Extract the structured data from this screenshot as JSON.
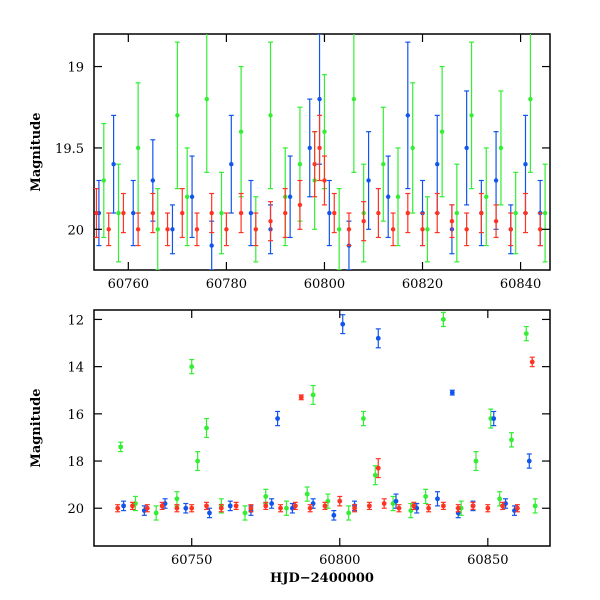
{
  "chart_data": [
    {
      "type": "scatter",
      "title": "",
      "xlabel": "",
      "ylabel": "Magnitude",
      "xlim": [
        60753,
        60846
      ],
      "ylim": [
        20.25,
        18.8
      ],
      "y_inverted": true,
      "grid": false,
      "x_ticks": [
        60760,
        60780,
        60800,
        60820,
        60840
      ],
      "x_tick_labels": [
        "60760",
        "60780",
        "60800",
        "60820",
        "60840"
      ],
      "y_ticks": [
        19,
        19.5,
        20
      ],
      "y_tick_labels": [
        "19",
        "19.5",
        "20"
      ],
      "errorbars": true,
      "series": [
        {
          "color": "#33ee33",
          "x": [
            60755,
            60758,
            60762,
            60766,
            60770,
            60772,
            60776,
            60779,
            60783,
            60786,
            60789,
            60792,
            60795,
            60798,
            60800,
            60803,
            60806,
            60808,
            60812,
            60815,
            60818,
            60821,
            60824,
            60827,
            60830,
            60833,
            60836,
            60839,
            60842,
            60845
          ],
          "y": [
            19.7,
            19.9,
            19.5,
            20.0,
            19.3,
            19.8,
            19.2,
            19.9,
            19.4,
            20.0,
            19.3,
            19.8,
            19.6,
            19.7,
            19.4,
            20.0,
            19.2,
            19.9,
            19.6,
            19.8,
            19.5,
            20.0,
            19.4,
            19.9,
            19.3,
            19.8,
            19.5,
            19.9,
            19.2,
            19.9
          ],
          "yerr": [
            0.35,
            0.3,
            0.4,
            0.25,
            0.45,
            0.3,
            0.45,
            0.25,
            0.4,
            0.2,
            0.45,
            0.3,
            0.35,
            0.3,
            0.35,
            0.25,
            0.45,
            0.3,
            0.35,
            0.3,
            0.4,
            0.2,
            0.4,
            0.3,
            0.45,
            0.3,
            0.35,
            0.25,
            0.45,
            0.3
          ]
        },
        {
          "color": "#1155ee",
          "x": [
            60754,
            60757,
            60761,
            60765,
            60769,
            60773,
            60777,
            60781,
            60785,
            60789,
            60793,
            60797,
            60799,
            60801,
            60805,
            60809,
            60813,
            60817,
            60820,
            60823,
            60826,
            60829,
            60832,
            60835,
            60838,
            60841,
            60844
          ],
          "y": [
            19.9,
            19.6,
            19.9,
            19.7,
            20.0,
            19.8,
            20.1,
            19.6,
            19.9,
            20.0,
            19.8,
            19.5,
            19.2,
            19.9,
            20.1,
            19.7,
            19.8,
            19.3,
            19.9,
            19.6,
            20.0,
            19.5,
            19.9,
            19.7,
            20.0,
            19.6,
            19.9
          ],
          "yerr": [
            0.2,
            0.3,
            0.2,
            0.25,
            0.15,
            0.25,
            0.15,
            0.3,
            0.2,
            0.15,
            0.25,
            0.3,
            0.4,
            0.2,
            0.15,
            0.3,
            0.25,
            0.45,
            0.2,
            0.3,
            0.15,
            0.35,
            0.2,
            0.3,
            0.15,
            0.3,
            0.2
          ]
        },
        {
          "color": "#ff3322",
          "x": [
            60753.5,
            60756,
            60759,
            60762,
            60765,
            60768,
            60771,
            60774,
            60777,
            60780,
            60783,
            60786,
            60789,
            60792,
            60795,
            60798,
            60799,
            60800,
            60802,
            60805,
            60808,
            60811,
            60814,
            60817,
            60820,
            60823,
            60826,
            60829,
            60832,
            60835,
            60838,
            60841,
            60844
          ],
          "y": [
            19.9,
            20.0,
            19.9,
            20.0,
            19.9,
            20.0,
            19.9,
            20.0,
            19.9,
            20.0,
            19.9,
            20.0,
            19.95,
            19.9,
            19.85,
            19.6,
            19.5,
            19.7,
            19.9,
            20.0,
            19.95,
            19.9,
            20.0,
            19.9,
            20.0,
            19.9,
            19.95,
            20.0,
            19.9,
            19.95,
            20.0,
            19.9,
            20.0
          ],
          "yerr": [
            0.15,
            0.1,
            0.12,
            0.1,
            0.12,
            0.1,
            0.15,
            0.1,
            0.12,
            0.1,
            0.12,
            0.1,
            0.12,
            0.15,
            0.15,
            0.2,
            0.2,
            0.15,
            0.12,
            0.1,
            0.12,
            0.15,
            0.1,
            0.12,
            0.1,
            0.12,
            0.1,
            0.1,
            0.12,
            0.1,
            0.1,
            0.12,
            0.1
          ]
        }
      ]
    },
    {
      "type": "scatter",
      "title": "",
      "xlabel": "HJD−2400000",
      "ylabel": "Magnitude",
      "xlim": [
        60717,
        60871
      ],
      "ylim": [
        21.6,
        11.6
      ],
      "y_inverted": true,
      "grid": false,
      "x_ticks": [
        60750,
        60800,
        60850
      ],
      "x_tick_labels": [
        "60750",
        "60800",
        "60850"
      ],
      "y_ticks": [
        12,
        14,
        16,
        18,
        20
      ],
      "y_tick_labels": [
        "12",
        "14",
        "16",
        "18",
        "20"
      ],
      "errorbars": true,
      "series": [
        {
          "color": "#33ee33",
          "x": [
            60726,
            60731,
            60738,
            60745,
            60750,
            60752,
            60755,
            60760,
            60768,
            60775,
            60782,
            60789,
            60791,
            60796,
            60803,
            60808,
            60812,
            60818,
            60824,
            60829,
            60835,
            60841,
            60846,
            60851,
            60854,
            60858,
            60863,
            60866
          ],
          "y": [
            17.4,
            19.8,
            20.2,
            19.6,
            14.0,
            18.0,
            16.6,
            19.9,
            20.2,
            19.5,
            20.0,
            19.4,
            15.2,
            19.7,
            20.2,
            16.2,
            18.6,
            19.8,
            20.1,
            19.5,
            12.0,
            20.0,
            18.0,
            16.2,
            19.6,
            17.1,
            12.6,
            19.9
          ],
          "yerr": [
            0.2,
            0.3,
            0.3,
            0.3,
            0.3,
            0.4,
            0.4,
            0.3,
            0.3,
            0.3,
            0.3,
            0.3,
            0.4,
            0.3,
            0.3,
            0.3,
            0.4,
            0.3,
            0.3,
            0.3,
            0.3,
            0.3,
            0.4,
            0.4,
            0.3,
            0.3,
            0.3,
            0.3
          ]
        },
        {
          "color": "#1155ee",
          "x": [
            60727,
            60734,
            60741,
            60748,
            60756,
            60763,
            60770,
            60777,
            60779,
            60784,
            60791,
            60798,
            60801,
            60805,
            60813,
            60819,
            60826,
            60833,
            60838,
            60840,
            60845,
            60852,
            60856,
            60859,
            60864
          ],
          "y": [
            19.9,
            20.1,
            19.8,
            20.0,
            20.2,
            19.9,
            20.1,
            19.8,
            16.2,
            20.0,
            19.8,
            20.3,
            12.2,
            19.9,
            12.8,
            19.7,
            20.0,
            19.6,
            15.1,
            20.2,
            19.9,
            16.2,
            19.8,
            20.1,
            18.0
          ],
          "yerr": [
            0.2,
            0.2,
            0.2,
            0.2,
            0.2,
            0.2,
            0.2,
            0.2,
            0.3,
            0.2,
            0.2,
            0.2,
            0.4,
            0.2,
            0.4,
            0.3,
            0.2,
            0.3,
            0.1,
            0.2,
            0.2,
            0.3,
            0.2,
            0.2,
            0.3
          ]
        },
        {
          "color": "#ff3322",
          "x": [
            60725,
            60730,
            60735,
            60740,
            60745,
            60750,
            60755,
            60760,
            60765,
            60770,
            60775,
            60780,
            60785,
            60787,
            60790,
            60795,
            60800,
            60805,
            60810,
            60813,
            60815,
            60820,
            60825,
            60830,
            60835,
            60840,
            60845,
            60850,
            60855,
            60860,
            60865
          ],
          "y": [
            20.0,
            19.9,
            20.0,
            19.9,
            20.0,
            20.0,
            19.9,
            20.0,
            19.9,
            20.0,
            19.9,
            20.0,
            19.9,
            15.3,
            20.0,
            19.9,
            19.7,
            20.0,
            19.9,
            18.3,
            19.8,
            20.0,
            19.9,
            20.0,
            19.9,
            20.0,
            19.9,
            20.0,
            19.9,
            20.0,
            13.8
          ],
          "yerr": [
            0.15,
            0.15,
            0.15,
            0.15,
            0.15,
            0.15,
            0.15,
            0.15,
            0.15,
            0.15,
            0.15,
            0.15,
            0.15,
            0.1,
            0.15,
            0.15,
            0.2,
            0.15,
            0.15,
            0.4,
            0.2,
            0.15,
            0.15,
            0.15,
            0.15,
            0.15,
            0.15,
            0.15,
            0.15,
            0.15,
            0.2
          ]
        }
      ]
    }
  ]
}
